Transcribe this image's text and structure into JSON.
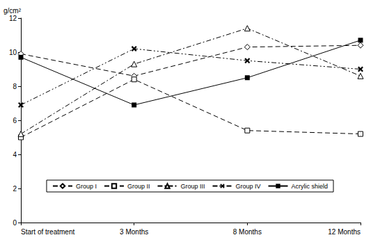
{
  "chart_data": {
    "type": "line",
    "ylabel": "g/cm²",
    "categories": [
      "Start of treatment",
      "3 Months",
      "8 Months",
      "12 Months"
    ],
    "series": [
      {
        "name": "Group I",
        "color": "#000000",
        "marker": "diamond_open",
        "line_style": "dashed",
        "values": [
          9.9,
          8.6,
          10.3,
          10.4
        ]
      },
      {
        "name": "Group II",
        "color": "#000000",
        "marker": "square_open",
        "line_style": "dashed",
        "values": [
          5.0,
          8.4,
          5.4,
          5.2
        ]
      },
      {
        "name": "Group III",
        "color": "#000000",
        "marker": "triangle_open",
        "line_style": "dashdot",
        "values": [
          5.2,
          9.3,
          11.4,
          8.6
        ]
      },
      {
        "name": "Group IV",
        "color": "#000000",
        "marker": "x",
        "line_style": "dashdotdot",
        "values": [
          6.9,
          10.2,
          9.5,
          9.0
        ]
      },
      {
        "name": "Acrylic shield",
        "color": "#000000",
        "marker": "square",
        "line_style": "solid",
        "values": [
          9.7,
          6.9,
          8.5,
          10.7
        ]
      }
    ],
    "ylim": [
      0,
      12
    ],
    "yticks": [
      0,
      2,
      4,
      6,
      8,
      10,
      12
    ],
    "grid": false,
    "legend": "bottom"
  }
}
